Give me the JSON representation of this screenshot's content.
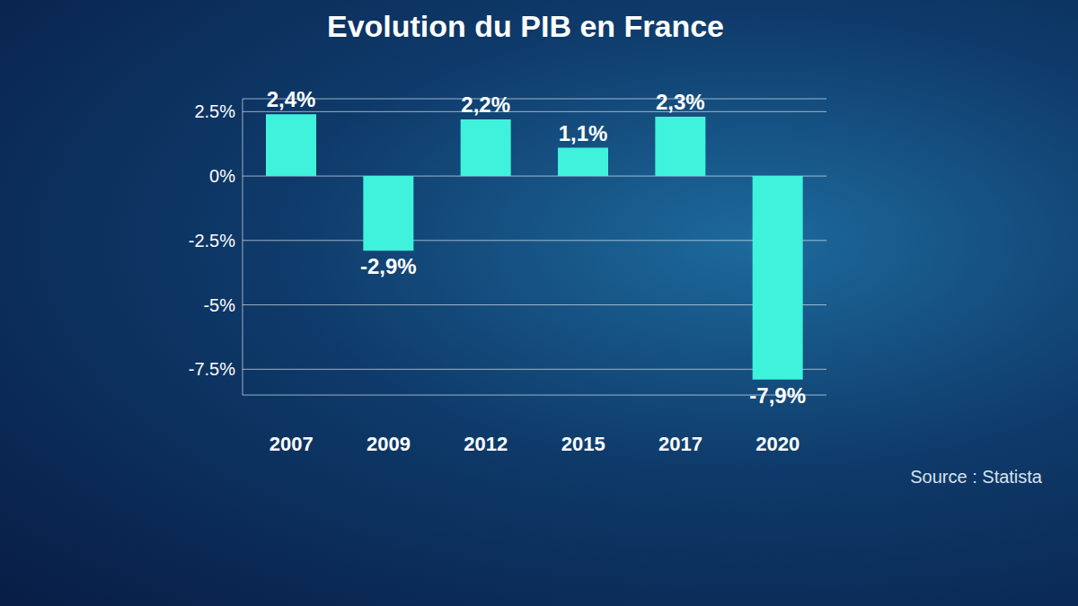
{
  "chart_data": {
    "type": "bar",
    "title": "Evolution du PIB en France",
    "source": "Source : Statista",
    "categories": [
      "2007",
      "2009",
      "2012",
      "2015",
      "2017",
      "2020"
    ],
    "values": [
      2.4,
      -2.9,
      2.2,
      1.1,
      2.3,
      -7.9
    ],
    "value_labels": [
      "2,4%",
      "-2,9%",
      "2,2%",
      "1,1%",
      "2,3%",
      "-7,9%"
    ],
    "color": "#3ff2dc",
    "ylim": [
      -8.5,
      3
    ],
    "yticks": [
      {
        "value": -7.5,
        "label": "-7.5%"
      },
      {
        "value": -5,
        "label": "-5%"
      },
      {
        "value": -2.5,
        "label": "-2.5%"
      },
      {
        "value": 0,
        "label": "0%"
      },
      {
        "value": 2.5,
        "label": "2.5%"
      }
    ],
    "grid": true,
    "data_labels": true
  }
}
